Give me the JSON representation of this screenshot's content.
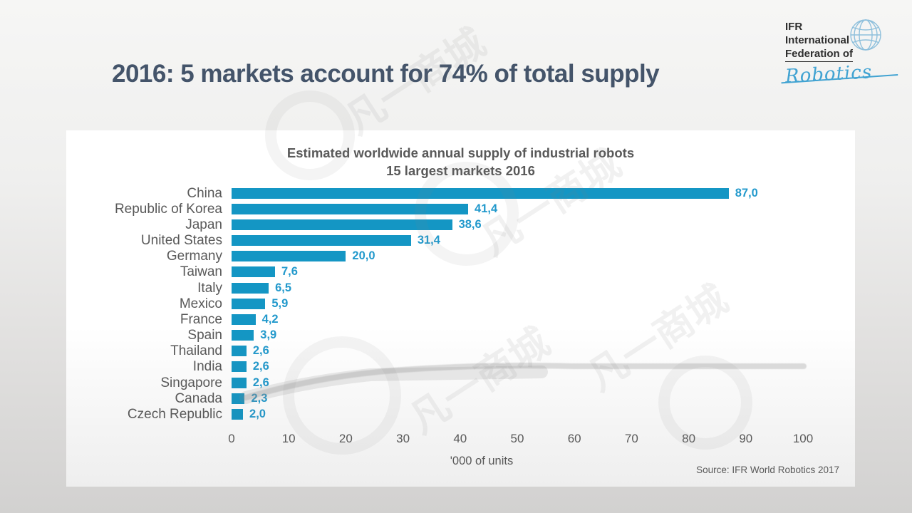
{
  "slide": {
    "title": "2016: 5 markets account for 74% of total supply",
    "logo": {
      "line1": "IFR",
      "line2": "International",
      "line3": "Federation of",
      "script": "Robotics"
    },
    "source": "Source: IFR World Robotics 2017"
  },
  "chart_data": {
    "type": "bar",
    "orientation": "horizontal",
    "title": "Estimated worldwide annual supply of industrial robots",
    "subtitle": "15 largest markets 2016",
    "categories": [
      "China",
      "Republic of Korea",
      "Japan",
      "United States",
      "Germany",
      "Taiwan",
      "Italy",
      "Mexico",
      "France",
      "Spain",
      "Thailand",
      "India",
      "Singapore",
      "Canada",
      "Czech Republic"
    ],
    "values": [
      87.0,
      41.4,
      38.6,
      31.4,
      20.0,
      7.6,
      6.5,
      5.9,
      4.2,
      3.9,
      2.6,
      2.6,
      2.6,
      2.3,
      2.0
    ],
    "value_labels": [
      "87,0",
      "41,4",
      "38,6",
      "31,4",
      "20,0",
      "7,6",
      "6,5",
      "5,9",
      "4,2",
      "3,9",
      "2,6",
      "2,6",
      "2,6",
      "2,3",
      "2,0"
    ],
    "xlabel": "'000 of units",
    "xlim": [
      0,
      100
    ],
    "xticks": [
      0,
      10,
      20,
      30,
      40,
      50,
      60,
      70,
      80,
      90,
      100
    ],
    "grid": false,
    "legend": false,
    "bar_color": "#1496C4",
    "value_label_color": "#2299CC",
    "axis_text_color": "#595959"
  },
  "watermark": {
    "text": "凡一商城"
  }
}
